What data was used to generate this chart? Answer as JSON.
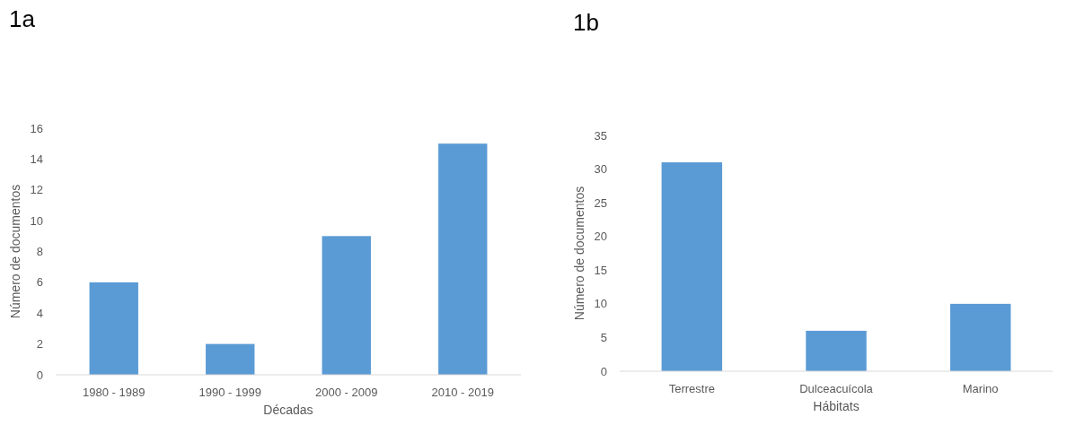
{
  "chart_data": [
    {
      "type": "bar",
      "title": "1a",
      "categories": [
        "1980 - 1989",
        "1990 - 1999",
        "2000 - 2009",
        "2010 - 2019"
      ],
      "values": [
        6,
        2,
        9,
        15
      ],
      "color": "#5b9bd5",
      "xlabel": "Décadas",
      "ylabel": "Número de documentos",
      "ylim": [
        0,
        16
      ],
      "yticks": [
        0,
        2,
        4,
        6,
        8,
        10,
        12,
        14,
        16
      ],
      "grid": false
    },
    {
      "type": "bar",
      "title": "1b",
      "categories": [
        "Terrestre",
        "Dulceacuícola",
        "Marino"
      ],
      "values": [
        31,
        6,
        10
      ],
      "color": "#5b9bd5",
      "xlabel": "Hábitats",
      "ylabel": "Número de documentos",
      "ylim": [
        0,
        35
      ],
      "yticks": [
        0,
        5,
        10,
        15,
        20,
        25,
        30,
        35
      ],
      "grid": false
    }
  ]
}
